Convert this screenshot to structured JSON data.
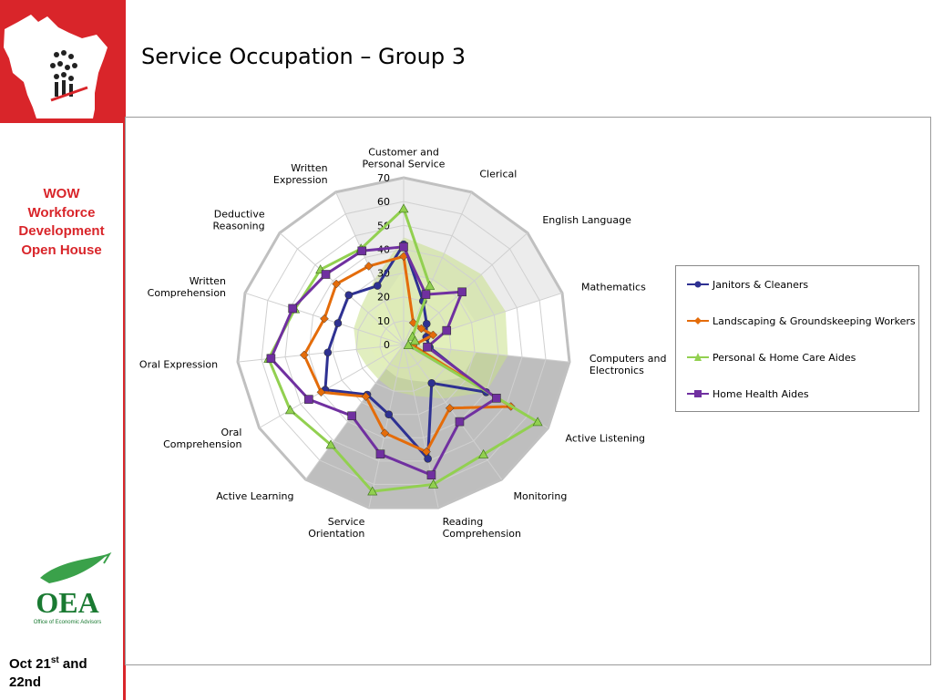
{
  "slide": {
    "title": "Service Occupation – Group 3",
    "sidebar_title_lines": [
      "WOW",
      "Workforce",
      "Development",
      "Open House"
    ],
    "date_prefix": "Oct 21",
    "date_sup": "st",
    "date_suffix": " and",
    "date_line2": "22nd",
    "oea_logo_text": "OEA",
    "oea_logo_subtext": "Office of Economic Advisors"
  },
  "colors": {
    "accent": "#d9252a",
    "janitors": "#2e3192",
    "landscaping": "#e46c0a",
    "personal_care": "#92d050",
    "home_health": "#7030a0"
  },
  "chart_data": {
    "type": "radar",
    "title": "",
    "rmax": 70,
    "ticks": [
      0,
      10,
      20,
      30,
      40,
      50,
      60,
      70
    ],
    "categories": [
      "Customer and Personal Service",
      "Clerical",
      "English Language",
      "Mathematics",
      "Computers and Electronics",
      "Active Listening",
      "Monitoring",
      "Reading Comprehension",
      "Service Orientation",
      "Active Learning",
      "Oral Comprehension",
      "Oral Expression",
      "Written Comprehension",
      "Deductive Reasoning",
      "Written Expression"
    ],
    "category_labels": [
      [
        "Customer and",
        "Personal Service"
      ],
      [
        "Clerical"
      ],
      [
        "English Language"
      ],
      [
        "Mathematics"
      ],
      [
        "Computers and",
        "Electronics"
      ],
      [
        "Active Listening"
      ],
      [
        "Monitoring"
      ],
      [
        "Reading",
        "Comprehension"
      ],
      [
        "Service",
        "Orientation"
      ],
      [
        "Active Learning"
      ],
      [
        "Oral",
        "Comprehension"
      ],
      [
        "Oral Expression"
      ],
      [
        "Written",
        "Comprehension"
      ],
      [
        "Deductive",
        "Reasoning"
      ],
      [
        "Written",
        "Expression"
      ]
    ],
    "series": [
      {
        "name": "Janitors & Cleaners",
        "color_key": "janitors",
        "marker": "circle",
        "values": [
          42,
          20,
          13,
          10,
          11,
          40,
          20,
          49,
          30,
          26,
          38,
          32,
          29,
          31,
          27
        ]
      },
      {
        "name": "Landscaping & Groundskeeping Workers",
        "color_key": "landscaping",
        "marker": "diamond",
        "values": [
          37,
          10,
          10,
          13,
          4,
          52,
          33,
          46,
          38,
          27,
          40,
          42,
          35,
          38,
          36
        ]
      },
      {
        "name": "Personal & Home Care Aides",
        "color_key": "personal_care",
        "marker": "triangle",
        "values": [
          57,
          27,
          5,
          5,
          2,
          65,
          57,
          60,
          63,
          52,
          55,
          57,
          48,
          47,
          44
        ]
      },
      {
        "name": "Home Health Aides",
        "color_key": "home_health",
        "marker": "square",
        "values": [
          41,
          23,
          33,
          19,
          10,
          45,
          40,
          56,
          47,
          37,
          46,
          56,
          49,
          44,
          43
        ]
      }
    ]
  }
}
